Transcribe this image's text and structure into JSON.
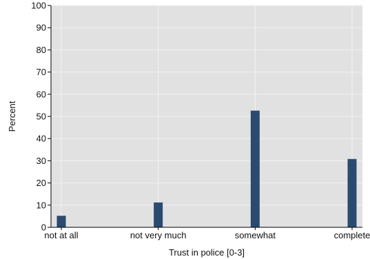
{
  "chart_data": {
    "type": "bar",
    "categories": [
      "not at all",
      "not very much",
      "somewhat",
      "complete"
    ],
    "x": [
      0,
      1,
      2,
      3
    ],
    "values": [
      5.2,
      11.2,
      52.6,
      30.8
    ],
    "xlabel": "Trust in police [0-3]",
    "ylabel": "Percent",
    "ylim": [
      0,
      100
    ],
    "yticks": [
      0,
      10,
      20,
      30,
      40,
      50,
      60,
      70,
      80,
      90,
      100
    ],
    "grid": true,
    "colors": {
      "bar": "#2b4a70",
      "plot_bg": "#e1e1e1",
      "grid": "#f2f2f2"
    }
  }
}
